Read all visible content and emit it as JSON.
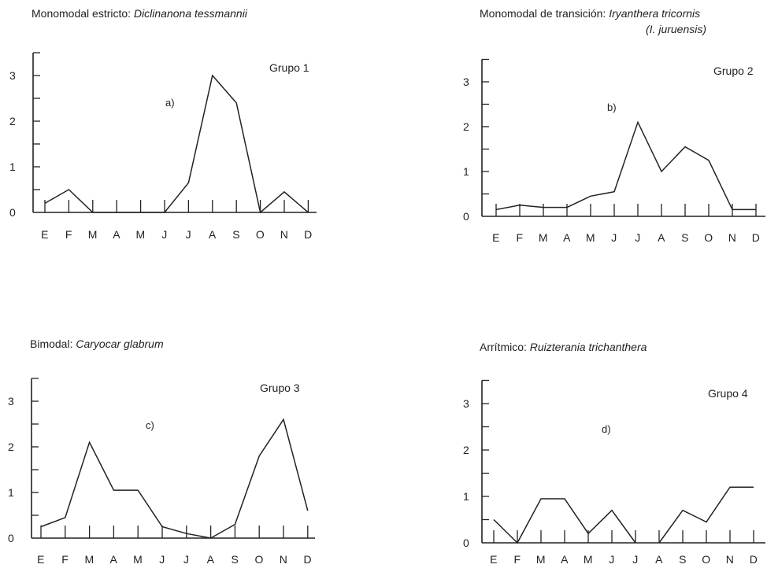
{
  "chart_data": [
    {
      "type": "line",
      "title_prefix": "Monomodal estricto: ",
      "species": "Diclinanona tessmannii",
      "species_line2": "",
      "group_label": "Grupo 1",
      "panel_label": "a)",
      "categories": [
        "E",
        "F",
        "M",
        "A",
        "M",
        "J",
        "J",
        "A",
        "S",
        "O",
        "N",
        "D"
      ],
      "ylim": [
        0,
        3.5
      ],
      "yticks": [
        0,
        1,
        2,
        3
      ],
      "series": [
        {
          "x": [
            0,
            1,
            2,
            5,
            6,
            7,
            8,
            9,
            10,
            11
          ],
          "values": [
            0.2,
            0.5,
            0,
            0,
            0.65,
            3.0,
            2.4,
            0,
            0.45,
            0
          ]
        }
      ]
    },
    {
      "type": "line",
      "title_prefix": "Monomodal de transición: ",
      "species": "Iryanthera tricornis",
      "species_line2": "(I. juruensis)",
      "group_label": "Grupo 2",
      "panel_label": "b)",
      "categories": [
        "E",
        "F",
        "M",
        "A",
        "M",
        "J",
        "J",
        "A",
        "S",
        "O",
        "N",
        "D"
      ],
      "ylim": [
        0,
        3.5
      ],
      "yticks": [
        0,
        1,
        2,
        3
      ],
      "series": [
        {
          "x": [
            0,
            1,
            2,
            3,
            4,
            5,
            6,
            7,
            8,
            9,
            10,
            11
          ],
          "values": [
            0.15,
            0.25,
            0.2,
            0.2,
            0.45,
            0.55,
            2.1,
            1.0,
            1.55,
            1.25,
            0.15,
            0.15
          ]
        }
      ]
    },
    {
      "type": "line",
      "title_prefix": "Bimodal: ",
      "species": "Caryocar glabrum",
      "species_line2": "",
      "group_label": "Grupo 3",
      "panel_label": "c)",
      "categories": [
        "E",
        "F",
        "M",
        "A",
        "M",
        "J",
        "J",
        "A",
        "S",
        "O",
        "N",
        "D"
      ],
      "ylim": [
        0,
        3.5
      ],
      "yticks": [
        0,
        1,
        2,
        3
      ],
      "series": [
        {
          "x": [
            0,
            1,
            2,
            3,
            4,
            5,
            6,
            7,
            8,
            9,
            10,
            11
          ],
          "values": [
            0.25,
            0.45,
            2.1,
            1.05,
            1.05,
            0.25,
            0.1,
            0,
            0.3,
            1.8,
            2.6,
            0.6
          ]
        }
      ]
    },
    {
      "type": "line",
      "title_prefix": "Arrítmico: ",
      "species": "Ruizterania trichanthera",
      "species_line2": "",
      "group_label": "Grupo 4",
      "panel_label": "d)",
      "categories": [
        "E",
        "F",
        "M",
        "A",
        "M",
        "J",
        "J",
        "A",
        "S",
        "O",
        "N",
        "D"
      ],
      "ylim": [
        0,
        3.5
      ],
      "yticks": [
        0,
        1,
        2,
        3
      ],
      "series": [
        {
          "x": [
            0,
            1,
            2,
            3,
            4,
            5,
            6
          ],
          "values": [
            0.5,
            0,
            0.95,
            0.95,
            0.2,
            0.7,
            0
          ]
        },
        {
          "x": [
            7,
            8,
            9,
            10,
            11
          ],
          "values": [
            0,
            0.7,
            0.45,
            1.2,
            1.2
          ]
        }
      ]
    }
  ]
}
